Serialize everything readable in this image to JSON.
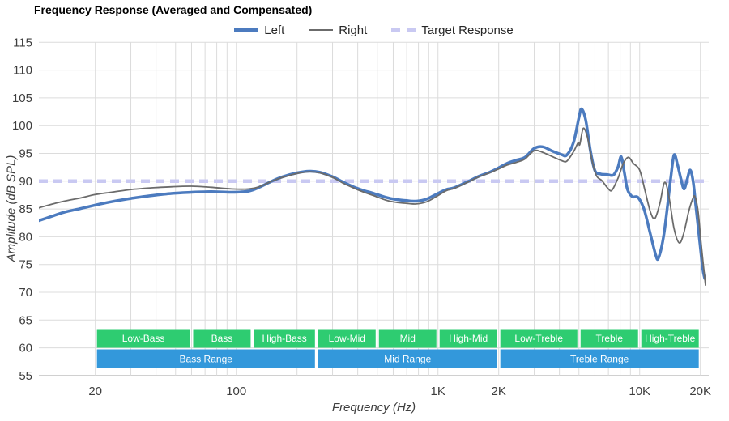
{
  "title": "Frequency Response (Averaged and Compensated)",
  "legend": {
    "items": [
      {
        "label": "Left",
        "color": "#4c7bbf",
        "style": "solid-thick"
      },
      {
        "label": "Right",
        "color": "#6b6b6b",
        "style": "solid-thin"
      },
      {
        "label": "Target Response",
        "color": "#c9c9f2",
        "style": "dashed"
      }
    ]
  },
  "axes": {
    "y": {
      "label": "Amplitude (dB SPL)",
      "ticks": [
        115,
        110,
        105,
        100,
        95,
        90,
        85,
        80,
        75,
        70,
        65,
        60,
        55
      ],
      "min": 55,
      "max": 115
    },
    "x": {
      "label": "Frequency (Hz)",
      "tick_labels": [
        {
          "f": 20,
          "label": "20"
        },
        {
          "f": 100,
          "label": "100"
        },
        {
          "f": 1000,
          "label": "1K"
        },
        {
          "f": 2000,
          "label": "2K"
        },
        {
          "f": 10000,
          "label": "10K"
        },
        {
          "f": 20000,
          "label": "20K"
        }
      ],
      "gridlines": [
        20,
        30,
        40,
        50,
        60,
        70,
        80,
        90,
        100,
        200,
        300,
        400,
        500,
        600,
        700,
        800,
        900,
        1000,
        2000,
        3000,
        4000,
        5000,
        6000,
        7000,
        8000,
        9000,
        10000,
        20000
      ]
    }
  },
  "bands": {
    "green_color": "#2ecc71",
    "blue_color": "#3398db",
    "sub_bands": [
      {
        "label": "Low-Bass",
        "f1": 20,
        "f2": 60
      },
      {
        "label": "Bass",
        "f1": 60,
        "f2": 120
      },
      {
        "label": "High-Bass",
        "f1": 120,
        "f2": 250
      },
      {
        "label": "Low-Mid",
        "f1": 250,
        "f2": 500
      },
      {
        "label": "Mid",
        "f1": 500,
        "f2": 1000
      },
      {
        "label": "High-Mid",
        "f1": 1000,
        "f2": 2000
      },
      {
        "label": "Low-Treble",
        "f1": 2000,
        "f2": 5000
      },
      {
        "label": "Treble",
        "f1": 5000,
        "f2": 10000
      },
      {
        "label": "High-Treble",
        "f1": 10000,
        "f2": 20000
      }
    ],
    "ranges": [
      {
        "label": "Bass Range",
        "f1": 20,
        "f2": 250
      },
      {
        "label": "Mid Range",
        "f1": 250,
        "f2": 2000
      },
      {
        "label": "Treble Range",
        "f1": 2000,
        "f2": 20000
      }
    ]
  },
  "chart_data": {
    "type": "line",
    "title": "Frequency Response (Averaged and Compensated)",
    "xlabel": "Frequency (Hz)",
    "ylabel": "Amplitude (dB SPL)",
    "x_scale": "log",
    "xlim": [
      10.5,
      21500
    ],
    "ylim": [
      55,
      115
    ],
    "grid": true,
    "legend_position": "top",
    "target": {
      "name": "Target Response",
      "value_db": 90
    },
    "series": [
      {
        "name": "Left",
        "color": "#4c7bbf",
        "width": 3.5,
        "points": [
          [
            10.5,
            82.9
          ],
          [
            12,
            83.6
          ],
          [
            14,
            84.4
          ],
          [
            17,
            85.1
          ],
          [
            20,
            85.7
          ],
          [
            24,
            86.3
          ],
          [
            30,
            86.9
          ],
          [
            38,
            87.4
          ],
          [
            48,
            87.8
          ],
          [
            60,
            88.0
          ],
          [
            75,
            88.1
          ],
          [
            95,
            88.0
          ],
          [
            115,
            88.2
          ],
          [
            130,
            88.9
          ],
          [
            150,
            90.0
          ],
          [
            170,
            90.8
          ],
          [
            200,
            91.5
          ],
          [
            230,
            91.8
          ],
          [
            260,
            91.6
          ],
          [
            300,
            90.8
          ],
          [
            340,
            89.8
          ],
          [
            380,
            89.0
          ],
          [
            430,
            88.3
          ],
          [
            480,
            87.8
          ],
          [
            550,
            87.1
          ],
          [
            620,
            86.7
          ],
          [
            700,
            86.5
          ],
          [
            780,
            86.4
          ],
          [
            880,
            86.8
          ],
          [
            1000,
            87.8
          ],
          [
            1100,
            88.5
          ],
          [
            1200,
            88.8
          ],
          [
            1400,
            89.9
          ],
          [
            1600,
            90.9
          ],
          [
            1800,
            91.6
          ],
          [
            2000,
            92.4
          ],
          [
            2200,
            93.2
          ],
          [
            2450,
            93.8
          ],
          [
            2700,
            94.3
          ],
          [
            3000,
            95.9
          ],
          [
            3300,
            96.2
          ],
          [
            3700,
            95.4
          ],
          [
            4100,
            94.8
          ],
          [
            4350,
            94.7
          ],
          [
            4700,
            97.0
          ],
          [
            5000,
            101.5
          ],
          [
            5150,
            103.0
          ],
          [
            5400,
            101.0
          ],
          [
            5700,
            95.5
          ],
          [
            6000,
            91.9
          ],
          [
            6400,
            91.3
          ],
          [
            6900,
            91.2
          ],
          [
            7400,
            91.1
          ],
          [
            7800,
            92.5
          ],
          [
            8100,
            94.4
          ],
          [
            8400,
            91.5
          ],
          [
            8700,
            88.5
          ],
          [
            9200,
            87.2
          ],
          [
            9800,
            87.1
          ],
          [
            10500,
            85.0
          ],
          [
            11300,
            80.5
          ],
          [
            12000,
            76.8
          ],
          [
            12400,
            76.2
          ],
          [
            13200,
            80.5
          ],
          [
            14200,
            90.0
          ],
          [
            14800,
            94.7
          ],
          [
            15400,
            93.0
          ],
          [
            16000,
            90.5
          ],
          [
            16600,
            88.6
          ],
          [
            17200,
            90.3
          ],
          [
            17800,
            92.0
          ],
          [
            18400,
            90.0
          ],
          [
            19000,
            85.5
          ],
          [
            19800,
            79.5
          ],
          [
            20500,
            74.5
          ],
          [
            21000,
            72.5
          ]
        ]
      },
      {
        "name": "Right",
        "color": "#6b6b6b",
        "width": 1.8,
        "points": [
          [
            10.5,
            85.2
          ],
          [
            12,
            85.8
          ],
          [
            14,
            86.4
          ],
          [
            17,
            87.0
          ],
          [
            20,
            87.6
          ],
          [
            24,
            88.0
          ],
          [
            30,
            88.5
          ],
          [
            38,
            88.8
          ],
          [
            48,
            89.0
          ],
          [
            60,
            89.1
          ],
          [
            75,
            88.9
          ],
          [
            95,
            88.6
          ],
          [
            115,
            88.6
          ],
          [
            130,
            89.0
          ],
          [
            150,
            90.0
          ],
          [
            170,
            90.7
          ],
          [
            200,
            91.4
          ],
          [
            230,
            91.7
          ],
          [
            260,
            91.5
          ],
          [
            300,
            90.7
          ],
          [
            340,
            89.6
          ],
          [
            380,
            88.8
          ],
          [
            430,
            88.0
          ],
          [
            480,
            87.4
          ],
          [
            550,
            86.6
          ],
          [
            620,
            86.2
          ],
          [
            700,
            86.0
          ],
          [
            780,
            85.9
          ],
          [
            880,
            86.3
          ],
          [
            1000,
            87.4
          ],
          [
            1100,
            88.3
          ],
          [
            1200,
            88.7
          ],
          [
            1400,
            89.8
          ],
          [
            1600,
            90.8
          ],
          [
            1800,
            91.5
          ],
          [
            2000,
            92.2
          ],
          [
            2200,
            92.9
          ],
          [
            2450,
            93.4
          ],
          [
            2700,
            94.0
          ],
          [
            3000,
            95.5
          ],
          [
            3300,
            95.2
          ],
          [
            3700,
            94.4
          ],
          [
            4100,
            93.7
          ],
          [
            4350,
            93.6
          ],
          [
            4700,
            95.3
          ],
          [
            4950,
            96.9
          ],
          [
            5050,
            96.6
          ],
          [
            5250,
            99.5
          ],
          [
            5500,
            98.0
          ],
          [
            5800,
            93.8
          ],
          [
            6100,
            91.0
          ],
          [
            6500,
            90.1
          ],
          [
            7000,
            88.6
          ],
          [
            7300,
            88.4
          ],
          [
            7800,
            90.5
          ],
          [
            8300,
            93.2
          ],
          [
            8800,
            94.3
          ],
          [
            9300,
            93.2
          ],
          [
            10000,
            92.0
          ],
          [
            10600,
            88.5
          ],
          [
            11300,
            84.5
          ],
          [
            11900,
            83.3
          ],
          [
            12600,
            86.0
          ],
          [
            13300,
            89.8
          ],
          [
            14000,
            87.0
          ],
          [
            14800,
            81.5
          ],
          [
            15700,
            78.9
          ],
          [
            16500,
            80.5
          ],
          [
            17500,
            84.5
          ],
          [
            18300,
            86.8
          ],
          [
            18800,
            87.2
          ],
          [
            19500,
            84.5
          ],
          [
            20200,
            78.5
          ],
          [
            21200,
            71.3
          ]
        ]
      }
    ]
  }
}
